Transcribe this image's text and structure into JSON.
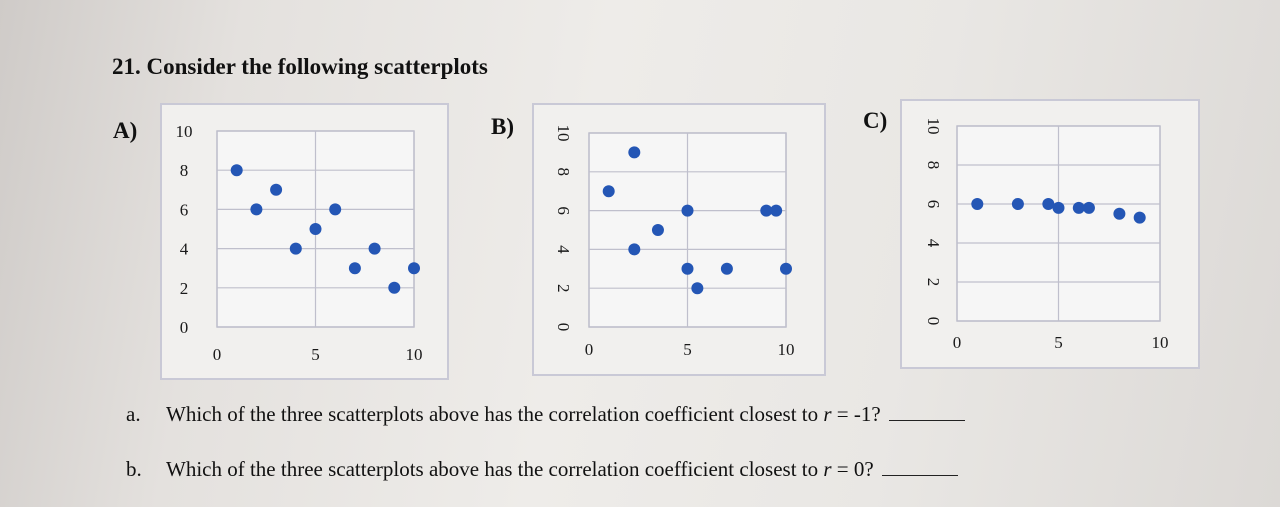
{
  "question": {
    "number": "21.",
    "text": "Consider the following scatterplots"
  },
  "chart_data": [
    {
      "type": "scatter",
      "panel_label": "A)",
      "xlim": [
        0,
        10
      ],
      "ylim": [
        0,
        10
      ],
      "xticks": [
        "0",
        "5",
        "10"
      ],
      "yticks": [
        "0",
        "2",
        "4",
        "6",
        "8",
        "10"
      ],
      "points": [
        [
          1,
          8
        ],
        [
          2,
          6
        ],
        [
          3,
          7
        ],
        [
          4,
          4
        ],
        [
          5,
          5
        ],
        [
          6,
          6
        ],
        [
          7,
          3
        ],
        [
          8,
          4
        ],
        [
          9,
          2
        ],
        [
          10,
          3
        ]
      ]
    },
    {
      "type": "scatter",
      "panel_label": "B)",
      "xlim": [
        0,
        10
      ],
      "ylim": [
        0,
        10
      ],
      "xticks": [
        "0",
        "5",
        "10"
      ],
      "yticks": [
        "0",
        "2",
        "4",
        "6",
        "8",
        "10"
      ],
      "points": [
        [
          1,
          7
        ],
        [
          2.3,
          9
        ],
        [
          2.3,
          4
        ],
        [
          3.5,
          5
        ],
        [
          5,
          6
        ],
        [
          5,
          3
        ],
        [
          5.5,
          2
        ],
        [
          7,
          3
        ],
        [
          9,
          6
        ],
        [
          9.5,
          6
        ],
        [
          10,
          3
        ]
      ]
    },
    {
      "type": "scatter",
      "panel_label": "C)",
      "xlim": [
        0,
        10
      ],
      "ylim": [
        0,
        10
      ],
      "xticks": [
        "0",
        "5",
        "10"
      ],
      "yticks": [
        "0",
        "2",
        "4",
        "6",
        "8",
        "10"
      ],
      "points": [
        [
          1,
          6
        ],
        [
          3,
          6
        ],
        [
          4.5,
          6
        ],
        [
          5,
          5.8
        ],
        [
          6,
          5.8
        ],
        [
          6.5,
          5.8
        ],
        [
          8,
          5.5
        ],
        [
          9,
          5.3
        ]
      ]
    }
  ],
  "subquestions": [
    {
      "letter": "a.",
      "text_before": "Which of the three scatterplots above has the correlation coefficient closest to ",
      "r": "r",
      "text_after": " = -1?"
    },
    {
      "letter": "b.",
      "text_before": "Which of the three scatterplots above has the correlation coefficient closest to ",
      "r": "r",
      "text_after": " = 0?"
    }
  ],
  "colors": {
    "point": "#2456b5",
    "grid": "#bfbfcc"
  }
}
